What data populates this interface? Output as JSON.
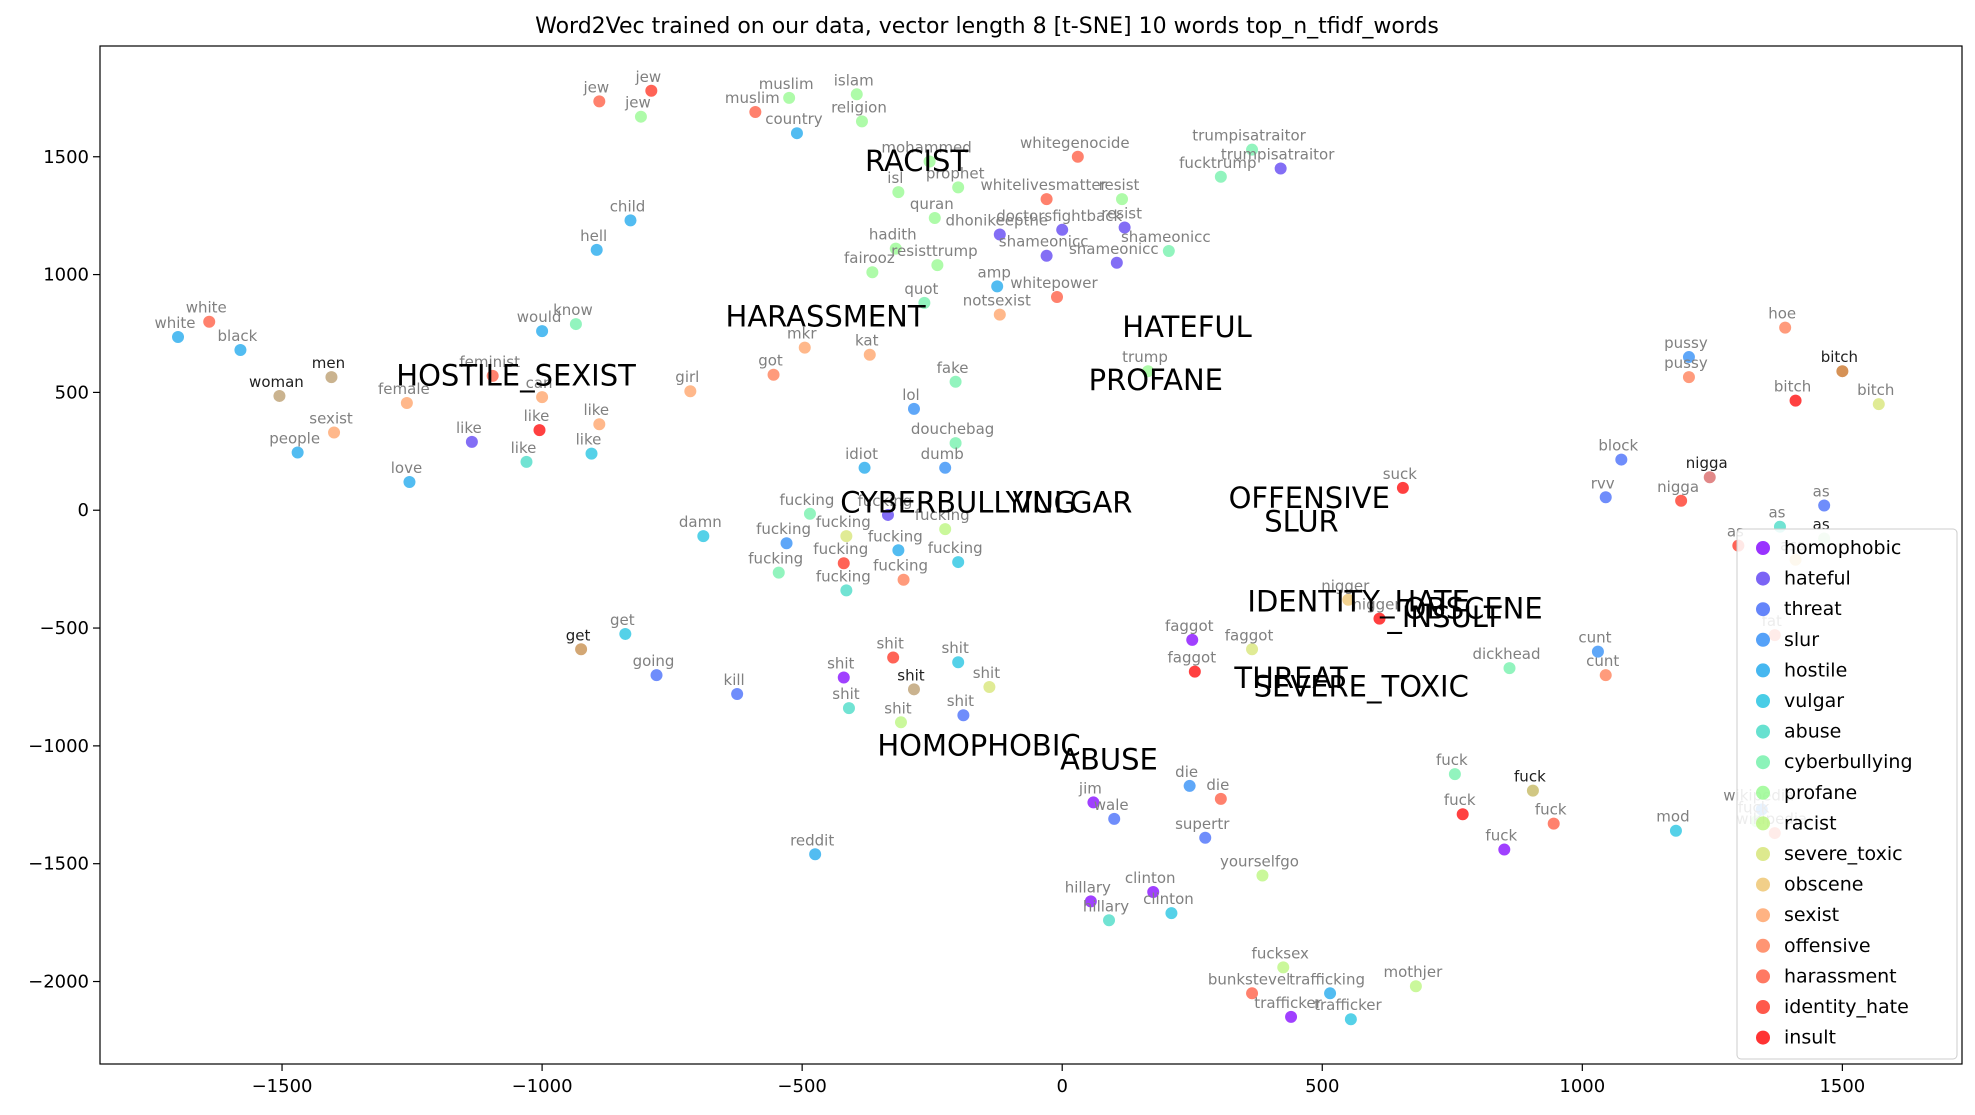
{
  "chart_data": {
    "type": "scatter",
    "title": "Word2Vec trained on our data, vector length 8 [t-SNE] 10 words top_n_tfidf_words",
    "xlabel": "",
    "ylabel": "",
    "xlim": [
      -1850,
      1730
    ],
    "ylim": [
      -2350,
      1970
    ],
    "xticks": [
      "-1500",
      "-1000",
      "-500",
      "0",
      "500",
      "1000",
      "1500"
    ],
    "yticks": [
      "-2000",
      "-1500",
      "-1000",
      "-500",
      "0",
      "500",
      "1000",
      "1500"
    ],
    "grid": false,
    "legend_position": "lower-right",
    "series": [
      {
        "name": "homophobic",
        "color": "#8000ff",
        "points": [
          {
            "label": "faggot",
            "x": 250,
            "y": -550
          },
          {
            "label": "shit",
            "x": -420,
            "y": -710
          },
          {
            "label": "jim",
            "x": 60,
            "y": -1240
          },
          {
            "label": "hillary",
            "x": 55,
            "y": -1660
          },
          {
            "label": "clinton",
            "x": 175,
            "y": -1620
          },
          {
            "label": "fuck",
            "x": 850,
            "y": -1440
          },
          {
            "label": "trafficker",
            "x": 440,
            "y": -2150
          }
        ]
      },
      {
        "name": "hateful",
        "color": "#5a3df2",
        "points": [
          {
            "label": "trumpisatraitor",
            "x": 420,
            "y": 1450
          },
          {
            "label": "resist",
            "x": 120,
            "y": 1200
          },
          {
            "label": "doctorsfightback",
            "x": 0,
            "y": 1190
          },
          {
            "label": "dhonikeepthe",
            "x": -120,
            "y": 1170
          },
          {
            "label": "shameonicc",
            "x": -30,
            "y": 1080
          },
          {
            "label": "shameonicc",
            "x": 105,
            "y": 1050
          },
          {
            "label": "like",
            "x": -1135,
            "y": 290
          },
          {
            "label": "fucking",
            "x": -335,
            "y": -20
          }
        ]
      },
      {
        "name": "threat",
        "color": "#3f67f9",
        "points": [
          {
            "label": "block",
            "x": 1075,
            "y": 215
          },
          {
            "label": "rvv",
            "x": 1045,
            "y": 55
          },
          {
            "label": "as",
            "x": 1465,
            "y": 20
          },
          {
            "label": "going",
            "x": -780,
            "y": -700
          },
          {
            "label": "kill",
            "x": -625,
            "y": -780
          },
          {
            "label": "shit",
            "x": -190,
            "y": -870
          },
          {
            "label": "wale",
            "x": 100,
            "y": -1310
          },
          {
            "label": "supertr",
            "x": 275,
            "y": -1390
          }
        ]
      },
      {
        "name": "slur",
        "color": "#2a8af6",
        "points": [
          {
            "label": "pussy",
            "x": 1205,
            "y": 650
          },
          {
            "label": "lol",
            "x": -285,
            "y": 430
          },
          {
            "label": "dumb",
            "x": -225,
            "y": 180
          },
          {
            "label": "fucking",
            "x": -530,
            "y": -140
          },
          {
            "label": "cunt",
            "x": 1030,
            "y": -600
          },
          {
            "label": "die",
            "x": 245,
            "y": -1170
          },
          {
            "label": "wikipedia",
            "x": 1345,
            "y": -1270
          }
        ]
      },
      {
        "name": "hostile",
        "color": "#18a5ec",
        "points": [
          {
            "label": "country",
            "x": -510,
            "y": 1600
          },
          {
            "label": "child",
            "x": -830,
            "y": 1230
          },
          {
            "label": "hell",
            "x": -895,
            "y": 1105
          },
          {
            "label": "amp",
            "x": -125,
            "y": 950
          },
          {
            "label": "would",
            "x": -1000,
            "y": 760
          },
          {
            "label": "black",
            "x": -1580,
            "y": 680
          },
          {
            "label": "white",
            "x": -1700,
            "y": 735
          },
          {
            "label": "people",
            "x": -1470,
            "y": 245
          },
          {
            "label": "love",
            "x": -1255,
            "y": 120
          },
          {
            "label": "idiot",
            "x": -380,
            "y": 180
          },
          {
            "label": "fucking",
            "x": -315,
            "y": -170
          },
          {
            "label": "reddit",
            "x": -475,
            "y": -1460
          },
          {
            "label": "trafficking",
            "x": 515,
            "y": -2050
          }
        ]
      },
      {
        "name": "vulgar",
        "color": "#1cc1e0",
        "points": [
          {
            "label": "damn",
            "x": -690,
            "y": -110
          },
          {
            "label": "like",
            "x": -905,
            "y": 240
          },
          {
            "label": "get",
            "x": -840,
            "y": -525
          },
          {
            "label": "fucking",
            "x": -200,
            "y": -220
          },
          {
            "label": "shit",
            "x": -200,
            "y": -645
          },
          {
            "label": "clinton",
            "x": 210,
            "y": -1710
          },
          {
            "label": "trafficker",
            "x": 555,
            "y": -2160
          },
          {
            "label": "mod",
            "x": 1180,
            "y": -1360
          }
        ]
      },
      {
        "name": "abuse",
        "color": "#41dac4",
        "points": [
          {
            "label": "like",
            "x": -1030,
            "y": 205
          },
          {
            "label": "fucking",
            "x": -415,
            "y": -340
          },
          {
            "label": "shit",
            "x": -410,
            "y": -840
          },
          {
            "label": "hillary",
            "x": 90,
            "y": -1740
          },
          {
            "label": "as",
            "x": 1380,
            "y": -70
          }
        ]
      },
      {
        "name": "cyberbullying",
        "color": "#6ef0a8",
        "points": [
          {
            "label": "know",
            "x": -935,
            "y": 790
          },
          {
            "label": "quot",
            "x": -265,
            "y": 880
          },
          {
            "label": "fake",
            "x": -205,
            "y": 545
          },
          {
            "label": "douchebag",
            "x": -205,
            "y": 285
          },
          {
            "label": "fucking",
            "x": -485,
            "y": -15
          },
          {
            "label": "fucking",
            "x": -545,
            "y": -265
          },
          {
            "label": "trumpisatraitor",
            "x": 365,
            "y": 1530
          },
          {
            "label": "fucktrump",
            "x": 305,
            "y": 1415
          },
          {
            "label": "shameonicc",
            "x": 205,
            "y": 1100
          },
          {
            "label": "dickhead",
            "x": 860,
            "y": -670
          },
          {
            "label": "fuck",
            "x": 755,
            "y": -1120
          }
        ]
      },
      {
        "name": "profane",
        "color": "#93fa8c",
        "points": [
          {
            "label": "islam",
            "x": -395,
            "y": 1765
          },
          {
            "label": "muslim",
            "x": -525,
            "y": 1750
          },
          {
            "label": "jew",
            "x": -810,
            "y": 1670
          },
          {
            "label": "religion",
            "x": -385,
            "y": 1650
          },
          {
            "label": "mohammed",
            "x": -255,
            "y": 1480
          },
          {
            "label": "prophet",
            "x": -200,
            "y": 1370
          },
          {
            "label": "isl",
            "x": -315,
            "y": 1350
          },
          {
            "label": "quran",
            "x": -245,
            "y": 1240
          },
          {
            "label": "hadith",
            "x": -320,
            "y": 1110
          },
          {
            "label": "resisttrump",
            "x": -240,
            "y": 1040
          },
          {
            "label": "fairooz",
            "x": -365,
            "y": 1010
          },
          {
            "label": "resist",
            "x": 115,
            "y": 1320
          },
          {
            "label": "trump",
            "x": 165,
            "y": 590
          },
          {
            "label": "fuck",
            "x": 1335,
            "y": -1320
          }
        ]
      },
      {
        "name": "racist",
        "color": "#b8f57a",
        "points": [
          {
            "label": "shit",
            "x": -310,
            "y": -900
          },
          {
            "label": "fucking",
            "x": -225,
            "y": -80
          },
          {
            "label": "yourselfgo",
            "x": 385,
            "y": -1550
          },
          {
            "label": "fucksex",
            "x": 425,
            "y": -1940
          },
          {
            "label": "mothjer",
            "x": 680,
            "y": -2020
          }
        ]
      },
      {
        "name": "severe_toxic",
        "color": "#d5e472",
        "points": [
          {
            "label": "fucking",
            "x": -415,
            "y": -110
          },
          {
            "label": "faggot",
            "x": 365,
            "y": -590
          },
          {
            "label": "shit",
            "x": -140,
            "y": -750
          },
          {
            "label": "bitch",
            "x": 1570,
            "y": 450
          }
        ]
      },
      {
        "name": "obscene",
        "color": "#edc36b",
        "points": [
          {
            "label": "nigger",
            "x": 550,
            "y": -380
          },
          {
            "label": "ass",
            "x": 1410,
            "y": -210
          }
        ]
      },
      {
        "name": "sexist",
        "color": "#ffa064",
        "points": [
          {
            "label": "notsexist",
            "x": -120,
            "y": 830
          },
          {
            "label": "kat",
            "x": -370,
            "y": 660
          },
          {
            "label": "mkr",
            "x": -495,
            "y": 690
          },
          {
            "label": "girl",
            "x": -715,
            "y": 505
          },
          {
            "label": "female",
            "x": -1260,
            "y": 455
          },
          {
            "label": "sexist",
            "x": -1400,
            "y": 330
          },
          {
            "label": "like",
            "x": -890,
            "y": 365
          },
          {
            "label": "can",
            "x": -1000,
            "y": 480
          }
        ]
      },
      {
        "name": "offensive",
        "color": "#ff7a50",
        "points": [
          {
            "label": "got",
            "x": -555,
            "y": 575
          },
          {
            "label": "pussy",
            "x": 1205,
            "y": 565
          },
          {
            "label": "hoe",
            "x": 1390,
            "y": 775
          },
          {
            "label": "cunt",
            "x": 1045,
            "y": -700
          },
          {
            "label": "fucking",
            "x": -305,
            "y": -295
          }
        ]
      },
      {
        "name": "harassment",
        "color": "#ff573c",
        "points": [
          {
            "label": "jew",
            "x": -890,
            "y": 1735
          },
          {
            "label": "muslim",
            "x": -590,
            "y": 1690
          },
          {
            "label": "whitegenocide",
            "x": 30,
            "y": 1500
          },
          {
            "label": "whitelivesmatter",
            "x": -30,
            "y": 1320
          },
          {
            "label": "whitepower",
            "x": -10,
            "y": 905
          },
          {
            "label": "white",
            "x": -1640,
            "y": 800
          },
          {
            "label": "feminist",
            "x": -1095,
            "y": 570
          },
          {
            "label": "die",
            "x": 305,
            "y": -1225
          },
          {
            "label": "fuck",
            "x": 945,
            "y": -1330
          },
          {
            "label": "bunkstevel",
            "x": 365,
            "y": -2050
          },
          {
            "label": "fat",
            "x": 1370,
            "y": -530
          },
          {
            "label": "wikipedia",
            "x": 1370,
            "y": -1370
          }
        ]
      },
      {
        "name": "identity_hate",
        "color": "#ff2f1e",
        "points": [
          {
            "label": "jew",
            "x": -790,
            "y": 1780
          },
          {
            "label": "shit",
            "x": -325,
            "y": -625
          },
          {
            "label": "fucking",
            "x": -420,
            "y": -225
          },
          {
            "label": "nigga",
            "x": 1190,
            "y": 40
          },
          {
            "label": "as",
            "x": 1300,
            "y": -150
          }
        ]
      },
      {
        "name": "insult",
        "color": "#ff0000",
        "points": [
          {
            "label": "like",
            "x": -1005,
            "y": 340
          },
          {
            "label": "suck",
            "x": 655,
            "y": 95
          },
          {
            "label": "bitch",
            "x": 1410,
            "y": 465
          },
          {
            "label": "faggot",
            "x": 255,
            "y": -685
          },
          {
            "label": "nigger",
            "x": 610,
            "y": -460
          },
          {
            "label": "fuck",
            "x": 770,
            "y": -1290
          }
        ]
      }
    ],
    "overlap_points": [
      {
        "label": "bitch",
        "x": 1500,
        "y": 590,
        "color": "#c86d1e"
      },
      {
        "label": "men",
        "x": -1405,
        "y": 565,
        "color": "#b89a6a"
      },
      {
        "label": "woman",
        "x": -1505,
        "y": 485,
        "color": "#b89a6a"
      },
      {
        "label": "get",
        "x": -925,
        "y": -590,
        "color": "#c48a46"
      },
      {
        "label": "shit",
        "x": -285,
        "y": -760,
        "color": "#b89a6a"
      },
      {
        "label": "nigga",
        "x": 1245,
        "y": 140,
        "color": "#d76060"
      },
      {
        "label": "fuck",
        "x": 905,
        "y": -1190,
        "color": "#c2b45a"
      },
      {
        "label": "as",
        "x": 1465,
        "y": -120,
        "color": "#a0e0a0"
      }
    ],
    "category_labels": [
      {
        "label": "RACIST",
        "x": -280,
        "y": 1440
      },
      {
        "label": "HARASSMENT",
        "x": -455,
        "y": 780
      },
      {
        "label": "HATEFUL",
        "x": 240,
        "y": 735
      },
      {
        "label": "PROFANE",
        "x": 180,
        "y": 510
      },
      {
        "label": "HOSTILE_SEXIST",
        "x": -1050,
        "y": 530
      },
      {
        "label": "CYBERBULLYING",
        "x": -200,
        "y": -10
      },
      {
        "label": "VULGAR",
        "x": 20,
        "y": -10
      },
      {
        "label": "OFFENSIVE",
        "x": 475,
        "y": 10
      },
      {
        "label": "SLUR",
        "x": 460,
        "y": -90
      },
      {
        "label": "IDENTITY_HATE",
        "x": 570,
        "y": -430
      },
      {
        "label": "OBSCENE",
        "x": 790,
        "y": -460
      },
      {
        "label": "_INSULT",
        "x": 735,
        "y": -495
      },
      {
        "label": "THREAT",
        "x": 440,
        "y": -755
      },
      {
        "label": "SEVERE_TOXIC",
        "x": 575,
        "y": -790
      },
      {
        "label": "HOMOPHOBIC",
        "x": -160,
        "y": -1040
      },
      {
        "label": "ABUSE",
        "x": 90,
        "y": -1100
      }
    ]
  }
}
